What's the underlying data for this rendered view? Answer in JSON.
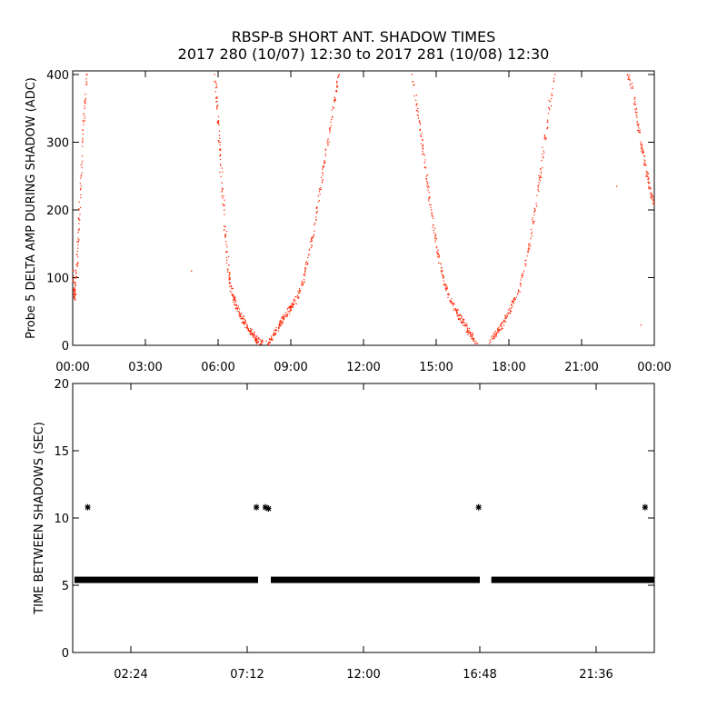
{
  "title": "RBSP-B SHORT ANT. SHADOW TIMES",
  "subtitle": "2017 280 (10/07) 12:30 to 2017 281 (10/08) 12:30",
  "chart_data": [
    {
      "type": "scatter",
      "ylabel": "Probe 5 DELTA AMP DURING SHADOW (ADC)",
      "xlim": [
        0,
        24
      ],
      "ylim": [
        0,
        400
      ],
      "xticks": [
        0,
        3,
        6,
        9,
        12,
        15,
        18,
        21,
        24
      ],
      "xtick_labels": [
        "00:00",
        "03:00",
        "06:00",
        "09:00",
        "12:00",
        "15:00",
        "18:00",
        "21:00",
        "00:00"
      ],
      "yticks": [
        0,
        100,
        200,
        300,
        400
      ],
      "ytick_labels": [
        "0",
        "100",
        "200",
        "300",
        "400"
      ],
      "marker_color": "#ff2200",
      "series": [
        {
          "values": [
            [
              0.0,
              110
            ],
            [
              0.04,
              82
            ],
            [
              0.08,
              70
            ],
            [
              0.12,
              88
            ],
            [
              0.18,
              120
            ],
            [
              0.25,
              170
            ],
            [
              0.32,
              230
            ],
            [
              0.4,
              300
            ],
            [
              0.5,
              350
            ],
            [
              0.6,
              400
            ],
            [
              5.85,
              400
            ],
            [
              6.0,
              330
            ],
            [
              6.15,
              240
            ],
            [
              6.3,
              160
            ],
            [
              6.45,
              100
            ],
            [
              6.6,
              75
            ],
            [
              6.8,
              55
            ],
            [
              7.0,
              40
            ],
            [
              7.2,
              28
            ],
            [
              7.4,
              18
            ],
            [
              7.6,
              8
            ],
            [
              7.75,
              2
            ],
            [
              5.9,
              390
            ],
            [
              6.05,
              310
            ],
            [
              6.25,
              200
            ],
            [
              6.5,
              80
            ],
            [
              6.9,
              45
            ],
            [
              7.3,
              22
            ],
            [
              7.55,
              10
            ],
            [
              8.05,
              2
            ],
            [
              8.2,
              10
            ],
            [
              8.4,
              22
            ],
            [
              8.6,
              35
            ],
            [
              8.8,
              45
            ],
            [
              9.0,
              55
            ],
            [
              9.3,
              70
            ],
            [
              9.6,
              110
            ],
            [
              9.9,
              160
            ],
            [
              10.2,
              230
            ],
            [
              10.5,
              300
            ],
            [
              10.8,
              360
            ],
            [
              11.0,
              400
            ],
            [
              8.3,
              15
            ],
            [
              8.7,
              40
            ],
            [
              9.1,
              60
            ],
            [
              9.5,
              90
            ],
            [
              10.0,
              180
            ],
            [
              10.4,
              270
            ],
            [
              10.9,
              390
            ],
            [
              14.0,
              400
            ],
            [
              14.3,
              330
            ],
            [
              14.6,
              250
            ],
            [
              14.9,
              170
            ],
            [
              15.2,
              110
            ],
            [
              15.5,
              75
            ],
            [
              15.8,
              52
            ],
            [
              16.1,
              35
            ],
            [
              16.4,
              18
            ],
            [
              16.7,
              3
            ],
            [
              14.1,
              385
            ],
            [
              14.45,
              290
            ],
            [
              14.8,
              200
            ],
            [
              15.1,
              130
            ],
            [
              15.4,
              85
            ],
            [
              15.9,
              45
            ],
            [
              16.3,
              22
            ],
            [
              16.55,
              10
            ],
            [
              17.2,
              3
            ],
            [
              17.5,
              18
            ],
            [
              17.8,
              35
            ],
            [
              18.1,
              55
            ],
            [
              18.4,
              80
            ],
            [
              18.7,
              120
            ],
            [
              19.0,
              180
            ],
            [
              19.3,
              250
            ],
            [
              19.6,
              330
            ],
            [
              19.9,
              400
            ],
            [
              17.35,
              10
            ],
            [
              17.7,
              28
            ],
            [
              18.2,
              65
            ],
            [
              18.8,
              140
            ],
            [
              19.2,
              230
            ],
            [
              19.7,
              360
            ],
            [
              22.9,
              400
            ],
            [
              23.1,
              380
            ],
            [
              23.3,
              330
            ],
            [
              23.5,
              290
            ],
            [
              23.7,
              250
            ],
            [
              23.9,
              220
            ],
            [
              24.0,
              210
            ],
            [
              23.2,
              360
            ],
            [
              23.6,
              270
            ],
            [
              23.8,
              240
            ],
            [
              4.9,
              110
            ],
            [
              22.45,
              235
            ],
            [
              23.45,
              30
            ]
          ]
        }
      ]
    },
    {
      "type": "scatter",
      "ylabel": "TIME BETWEEN SHADOWS (SEC)",
      "xlim": [
        0,
        24
      ],
      "ylim": [
        0,
        20
      ],
      "xticks": [
        2.4,
        7.2,
        12.0,
        16.8,
        21.6
      ],
      "xtick_labels": [
        "02:24",
        "07:12",
        "12:00",
        "16:48",
        "21:36"
      ],
      "yticks": [
        0,
        5,
        10,
        15,
        20
      ],
      "ytick_labels": [
        "0",
        "5",
        "10",
        "15",
        "20"
      ],
      "marker": "asterisk",
      "marker_color": "#000000",
      "baseline": {
        "y": 5.4,
        "segments": [
          [
            0.0,
            7.65
          ],
          [
            8.1,
            16.8
          ],
          [
            17.2,
            24.0
          ]
        ]
      },
      "series": [
        {
          "values": [
            [
              0.62,
              10.8
            ],
            [
              7.58,
              10.8
            ],
            [
              7.95,
              10.8
            ],
            [
              8.08,
              10.7
            ],
            [
              16.75,
              10.8
            ],
            [
              23.62,
              10.8
            ]
          ]
        }
      ]
    }
  ]
}
